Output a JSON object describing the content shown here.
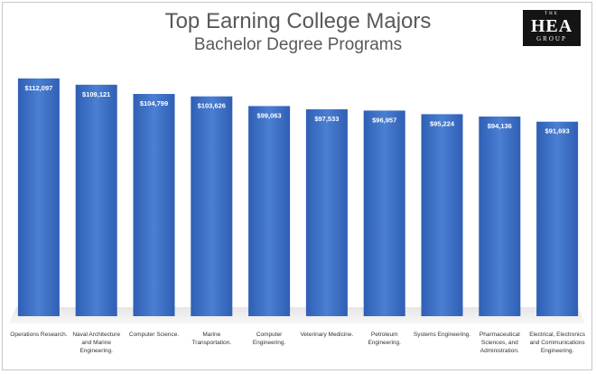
{
  "chart_data": {
    "type": "bar",
    "title": "Top Earning College Majors",
    "subtitle": "Bachelor Degree Programs",
    "categories": [
      "Operations Research.",
      "Naval Architecture and Marine Engineering.",
      "Computer Science.",
      "Marine Transportation.",
      "Computer Engineering.",
      "Veterinary Medicine.",
      "Petroleum Engineering.",
      "Systems Engineering.",
      "Pharmaceutical Sciences, and Administration.",
      "Electrical, Electronics and Communications Engineering."
    ],
    "category_lines": [
      [
        "Operations Research."
      ],
      [
        "Naval Architecture",
        "and Marine",
        "Engineering."
      ],
      [
        "Computer Science."
      ],
      [
        "Marine",
        "Transportation."
      ],
      [
        "Computer",
        "Engineering."
      ],
      [
        "Veterinary Medicine."
      ],
      [
        "Petroleum",
        "Engineering."
      ],
      [
        "Systems Engineering."
      ],
      [
        "Pharmaceutical",
        "Sciences, and",
        "Administration."
      ],
      [
        "Electrical, Electronics",
        "and Communications",
        "Engineering."
      ]
    ],
    "values": [
      112097,
      109121,
      104799,
      103626,
      99063,
      97533,
      96957,
      95224,
      94136,
      91693
    ],
    "value_labels": [
      "$112,097",
      "$109,121",
      "$104,799",
      "$103,626",
      "$99,063",
      "$97,533",
      "$96,957",
      "$95,224",
      "$94,136",
      "$91,693"
    ],
    "ylim": [
      0,
      115000
    ],
    "xlabel": "",
    "ylabel": "",
    "grid": false,
    "bar_color": "#3d6fc4"
  },
  "logo": {
    "line1": "THE",
    "line2": "HEA",
    "line3": "GROUP"
  }
}
